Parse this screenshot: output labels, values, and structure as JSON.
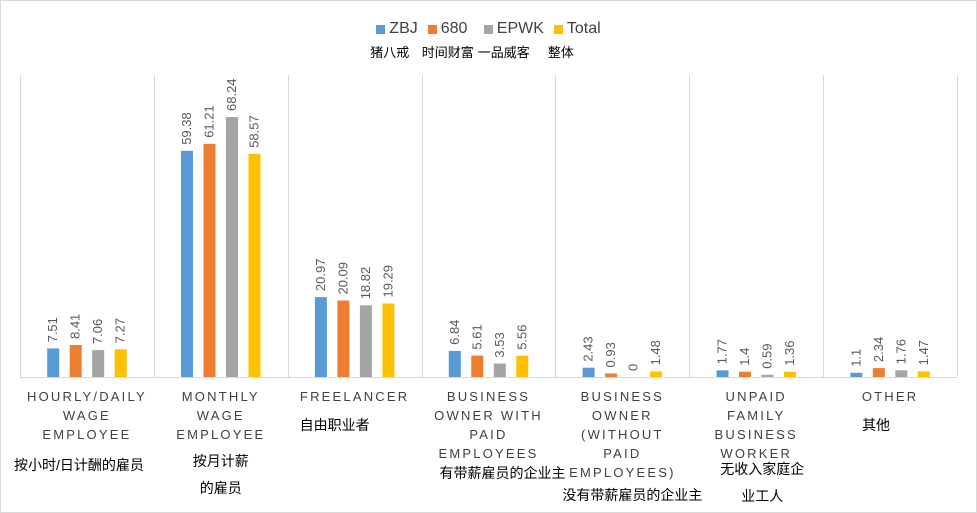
{
  "chart_data": {
    "type": "bar",
    "categories": [
      "HOURLY/DAILY WAGE EMPLOYEE",
      "MONTHLY WAGE EMPLOYEE",
      "FREELANCER",
      "BUSINESS OWNER WITH PAID EMPLOYEES",
      "BUSINESS OWNER (WITHOUT PAID EMPLOYEES)",
      "UNPAID FAMILY BUSINESS WORKER",
      "OTHER"
    ],
    "categories_cn": [
      "按小时/日计酬的雇员",
      "按月计薪的雇员",
      "自由职业者",
      "有带薪雇员的企业主",
      "没有带薪雇员的企业主",
      "无收入家庭企业工人",
      "其他"
    ],
    "series": [
      {
        "name": "ZBJ",
        "name_cn": "猪八戒",
        "color": "#5b9bd5",
        "values": [
          7.51,
          59.38,
          20.97,
          6.84,
          2.43,
          1.77,
          1.1
        ]
      },
      {
        "name": "680",
        "name_cn": "时间财富",
        "color": "#ed7d31",
        "values": [
          8.41,
          61.21,
          20.09,
          5.61,
          0.93,
          1.4,
          2.34
        ]
      },
      {
        "name": "EPWK",
        "name_cn": "一品威客",
        "color": "#a5a5a5",
        "values": [
          7.06,
          68.24,
          18.82,
          3.53,
          0,
          0.59,
          1.76
        ]
      },
      {
        "name": "Total",
        "name_cn": "整体",
        "color": "#ffc000",
        "values": [
          7.27,
          58.57,
          19.29,
          5.56,
          1.48,
          1.36,
          1.47
        ]
      }
    ],
    "ylim": [
      0,
      70
    ],
    "grid": false,
    "legend_position": "top",
    "data_labels": true
  }
}
